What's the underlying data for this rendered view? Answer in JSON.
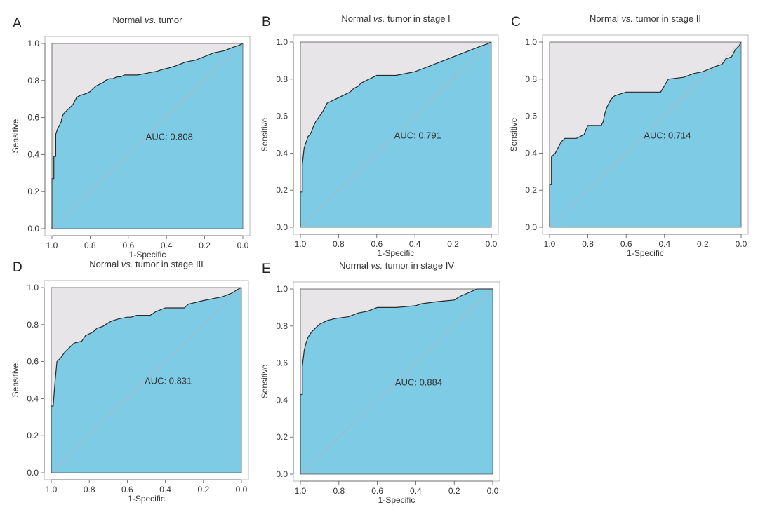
{
  "colors": {
    "fill": "#7ECBE6",
    "upper": "#E7E5E7",
    "curve": "#2a2a2a",
    "diagonal": "#d9a0a0",
    "axis": "#555555"
  },
  "chart_data": [
    {
      "type": "line",
      "letter": "A",
      "title_prefix": "Normal ",
      "title_vs": "vs.",
      "title_suffix": " tumor",
      "xlabel": "1-Specific",
      "ylabel": "Sensitive",
      "xlim": [
        1.0,
        0.0
      ],
      "ylim": [
        0.0,
        1.0
      ],
      "xticks": [
        "1.0",
        "0.8",
        "0.6",
        "0.4",
        "0.2",
        "0.0"
      ],
      "yticks": [
        "0.0",
        "0.2",
        "0.4",
        "0.6",
        "0.8",
        "1.0"
      ],
      "auc_label": "AUC: 0.808",
      "specificity": [
        1.0,
        1.0,
        0.99,
        0.99,
        0.98,
        0.98,
        0.97,
        0.96,
        0.95,
        0.95,
        0.94,
        0.93,
        0.92,
        0.91,
        0.9,
        0.89,
        0.88,
        0.87,
        0.85,
        0.82,
        0.8,
        0.78,
        0.77,
        0.75,
        0.73,
        0.72,
        0.7,
        0.68,
        0.66,
        0.64,
        0.62,
        0.6,
        0.55,
        0.5,
        0.45,
        0.42,
        0.38,
        0.35,
        0.3,
        0.25,
        0.2,
        0.15,
        0.1,
        0.05,
        0.02,
        0.0
      ],
      "sensitivity": [
        0.0,
        0.27,
        0.27,
        0.39,
        0.39,
        0.51,
        0.54,
        0.56,
        0.58,
        0.59,
        0.62,
        0.63,
        0.64,
        0.65,
        0.66,
        0.67,
        0.69,
        0.71,
        0.72,
        0.73,
        0.74,
        0.76,
        0.77,
        0.78,
        0.79,
        0.8,
        0.81,
        0.81,
        0.82,
        0.82,
        0.83,
        0.83,
        0.83,
        0.84,
        0.85,
        0.86,
        0.87,
        0.88,
        0.9,
        0.91,
        0.93,
        0.95,
        0.96,
        0.98,
        0.99,
        1.0
      ]
    },
    {
      "type": "line",
      "letter": "B",
      "title_prefix": "Normal ",
      "title_vs": "vs.",
      "title_suffix": " tumor in stage I",
      "xlabel": "1-Specific",
      "ylabel": "Sensitive",
      "xlim": [
        1.0,
        0.0
      ],
      "ylim": [
        0.0,
        1.0
      ],
      "xticks": [
        "1.0",
        "0.8",
        "0.6",
        "0.4",
        "0.2",
        "0.0"
      ],
      "yticks": [
        "0.0",
        "0.2",
        "0.4",
        "0.6",
        "0.8",
        "1.0"
      ],
      "auc_label": "AUC: 0.791",
      "specificity": [
        1.0,
        1.0,
        0.99,
        0.99,
        0.98,
        0.97,
        0.96,
        0.95,
        0.94,
        0.93,
        0.92,
        0.9,
        0.88,
        0.87,
        0.86,
        0.84,
        0.82,
        0.8,
        0.78,
        0.76,
        0.74,
        0.72,
        0.7,
        0.68,
        0.66,
        0.64,
        0.62,
        0.6,
        0.58,
        0.55,
        0.5,
        0.45,
        0.4,
        0.35,
        0.3,
        0.25,
        0.2,
        0.15,
        0.1,
        0.05,
        0.02,
        0.0
      ],
      "sensitivity": [
        0.0,
        0.19,
        0.19,
        0.34,
        0.43,
        0.46,
        0.49,
        0.5,
        0.52,
        0.55,
        0.57,
        0.6,
        0.63,
        0.65,
        0.67,
        0.68,
        0.69,
        0.7,
        0.71,
        0.72,
        0.73,
        0.75,
        0.76,
        0.78,
        0.79,
        0.8,
        0.81,
        0.82,
        0.82,
        0.82,
        0.82,
        0.83,
        0.84,
        0.86,
        0.88,
        0.9,
        0.92,
        0.94,
        0.96,
        0.98,
        0.99,
        1.0
      ]
    },
    {
      "type": "line",
      "letter": "C",
      "title_prefix": "Normal ",
      "title_vs": "vs.",
      "title_suffix": " tumor in stage II",
      "xlabel": "1-Specific",
      "ylabel": "Sensitive",
      "xlim": [
        1.0,
        0.0
      ],
      "ylim": [
        0.0,
        1.0
      ],
      "xticks": [
        "1.0",
        "0.8",
        "0.6",
        "0.4",
        "0.2",
        "0.0"
      ],
      "yticks": [
        "0.0",
        "0.2",
        "0.4",
        "0.6",
        "0.8",
        "1.0"
      ],
      "auc_label": "AUC: 0.714",
      "specificity": [
        1.0,
        1.0,
        0.99,
        0.99,
        0.97,
        0.96,
        0.95,
        0.94,
        0.92,
        0.86,
        0.84,
        0.82,
        0.8,
        0.73,
        0.72,
        0.71,
        0.7,
        0.68,
        0.66,
        0.6,
        0.55,
        0.42,
        0.38,
        0.3,
        0.25,
        0.2,
        0.13,
        0.1,
        0.08,
        0.05,
        0.04,
        0.03,
        0.02,
        0.01,
        0.0
      ],
      "sensitivity": [
        0.0,
        0.23,
        0.23,
        0.38,
        0.4,
        0.42,
        0.44,
        0.46,
        0.48,
        0.48,
        0.49,
        0.5,
        0.55,
        0.55,
        0.57,
        0.62,
        0.65,
        0.69,
        0.71,
        0.73,
        0.73,
        0.73,
        0.8,
        0.81,
        0.83,
        0.84,
        0.87,
        0.88,
        0.91,
        0.92,
        0.94,
        0.96,
        0.97,
        0.98,
        1.0
      ]
    },
    {
      "type": "line",
      "letter": "D",
      "title_prefix": "Normal ",
      "title_vs": "vs.",
      "title_suffix": " tumor in stage III",
      "xlabel": "1-Specific",
      "ylabel": "Sensitive",
      "xlim": [
        1.0,
        0.0
      ],
      "ylim": [
        0.0,
        1.0
      ],
      "xticks": [
        "1.0",
        "0.8",
        "0.6",
        "0.4",
        "0.2",
        "0.0"
      ],
      "yticks": [
        "0.0",
        "0.2",
        "0.4",
        "0.6",
        "0.8",
        "1.0"
      ],
      "auc_label": "AUC: 0.831",
      "specificity": [
        1.0,
        1.0,
        0.99,
        0.98,
        0.97,
        0.95,
        0.93,
        0.9,
        0.88,
        0.84,
        0.82,
        0.78,
        0.76,
        0.73,
        0.7,
        0.68,
        0.65,
        0.6,
        0.58,
        0.55,
        0.48,
        0.45,
        0.4,
        0.3,
        0.28,
        0.2,
        0.15,
        0.1,
        0.05,
        0.02,
        0.0
      ],
      "sensitivity": [
        0.0,
        0.36,
        0.36,
        0.49,
        0.6,
        0.62,
        0.65,
        0.68,
        0.7,
        0.71,
        0.74,
        0.76,
        0.78,
        0.79,
        0.81,
        0.82,
        0.83,
        0.84,
        0.84,
        0.85,
        0.85,
        0.87,
        0.89,
        0.89,
        0.91,
        0.93,
        0.94,
        0.95,
        0.97,
        0.99,
        1.0
      ]
    },
    {
      "type": "line",
      "letter": "E",
      "title_prefix": "Normal ",
      "title_vs": "vs.",
      "title_suffix": " tumor in stage IV",
      "xlabel": "1-Specific",
      "ylabel": "Sensitive",
      "xlim": [
        1.0,
        0.0
      ],
      "ylim": [
        0.0,
        1.0
      ],
      "xticks": [
        "1.0",
        "0.8",
        "0.6",
        "0.4",
        "0.2",
        "0.0"
      ],
      "yticks": [
        "0.0",
        "0.2",
        "0.4",
        "0.6",
        "0.8",
        "1.0"
      ],
      "auc_label": "AUC: 0.884",
      "specificity": [
        1.0,
        1.0,
        0.99,
        0.99,
        0.98,
        0.97,
        0.96,
        0.94,
        0.92,
        0.9,
        0.86,
        0.82,
        0.75,
        0.7,
        0.65,
        0.6,
        0.5,
        0.4,
        0.37,
        0.3,
        0.2,
        0.17,
        0.08,
        0.0
      ],
      "sensitivity": [
        0.0,
        0.43,
        0.43,
        0.58,
        0.67,
        0.71,
        0.74,
        0.77,
        0.79,
        0.81,
        0.83,
        0.84,
        0.85,
        0.87,
        0.88,
        0.9,
        0.9,
        0.91,
        0.92,
        0.93,
        0.94,
        0.96,
        1.0,
        1.0
      ]
    }
  ]
}
